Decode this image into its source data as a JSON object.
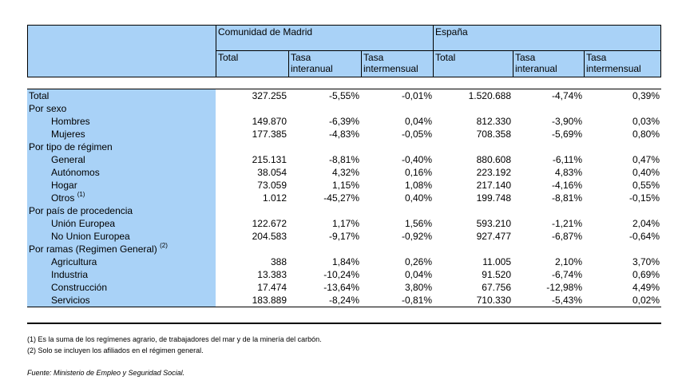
{
  "header": {
    "group_madrid": "Comunidad de Madrid",
    "group_spain": "España",
    "col_total": "Total",
    "col_interanual_1": "Tasa",
    "col_interanual_2": "interanual",
    "col_intermensual_1": "Tasa",
    "col_intermensual_2": "intermensual"
  },
  "rows": [
    {
      "label": "Total",
      "sup": "",
      "values": [
        "327.255",
        "-5,55%",
        "-0,01%",
        "1.520.688",
        "-4,74%",
        "0,39%"
      ]
    },
    {
      "label": "Por sexo",
      "sup": "",
      "values": [
        "",
        "",
        "",
        "",
        "",
        ""
      ]
    },
    {
      "label": "Hombres",
      "sup": "",
      "values": [
        "149.870",
        "-6,39%",
        "0,04%",
        "812.330",
        "-3,90%",
        "0,03%"
      ]
    },
    {
      "label": "Mujeres",
      "sup": "",
      "values": [
        "177.385",
        "-4,83%",
        "-0,05%",
        "708.358",
        "-5,69%",
        "0,80%"
      ]
    },
    {
      "label": "Por tipo de régimen",
      "sup": "",
      "values": [
        "",
        "",
        "",
        "",
        "",
        ""
      ]
    },
    {
      "label": "General",
      "sup": "",
      "values": [
        "215.131",
        "-8,81%",
        "-0,40%",
        "880.608",
        "-6,11%",
        "0,47%"
      ]
    },
    {
      "label": "Autónomos",
      "sup": "",
      "values": [
        "38.054",
        "4,32%",
        "0,16%",
        "223.192",
        "4,83%",
        "0,40%"
      ]
    },
    {
      "label": "Hogar",
      "sup": "",
      "values": [
        "73.059",
        "1,15%",
        "1,08%",
        "217.140",
        "-4,16%",
        "0,55%"
      ]
    },
    {
      "label": "Otros",
      "sup": "(1)",
      "values": [
        "1.012",
        "-45,27%",
        "0,40%",
        "199.748",
        "-8,81%",
        "-0,15%"
      ]
    },
    {
      "label": "Por país de procedencia",
      "sup": "",
      "values": [
        "",
        "",
        "",
        "",
        "",
        ""
      ]
    },
    {
      "label": "Unión Europea",
      "sup": "",
      "values": [
        "122.672",
        "1,17%",
        "1,56%",
        "593.210",
        "-1,21%",
        "2,04%"
      ]
    },
    {
      "label": "No Union Europea",
      "sup": "",
      "values": [
        "204.583",
        "-9,17%",
        "-0,92%",
        "927.477",
        "-6,87%",
        "-0,64%"
      ]
    },
    {
      "label": "Por ramas (Regimen General)",
      "sup": "(2)",
      "values": [
        "",
        "",
        "",
        "",
        "",
        ""
      ]
    },
    {
      "label": "Agricultura",
      "sup": "",
      "values": [
        "388",
        "1,84%",
        "0,26%",
        "11.005",
        "2,10%",
        "3,70%"
      ]
    },
    {
      "label": "Industria",
      "sup": "",
      "values": [
        "13.383",
        "-10,24%",
        "0,04%",
        "91.520",
        "-6,74%",
        "0,69%"
      ]
    },
    {
      "label": "Construcción",
      "sup": "",
      "values": [
        "17.474",
        "-13,64%",
        "3,80%",
        "67.756",
        "-12,98%",
        "4,49%"
      ]
    },
    {
      "label": "Servicios",
      "sup": "",
      "values": [
        "183.889",
        "-8,24%",
        "-0,81%",
        "710.330",
        "-5,43%",
        "0,02%"
      ]
    }
  ],
  "footnotes": {
    "note1": "(1) Es la suma de los regímenes  agrario, de trabajadores del mar y de la minería del carbón.",
    "note2": "(2) Solo se incluyen los afiliados en el régimen general.",
    "source": "Fuente: Ministerio de Empleo y Seguridad Social."
  }
}
